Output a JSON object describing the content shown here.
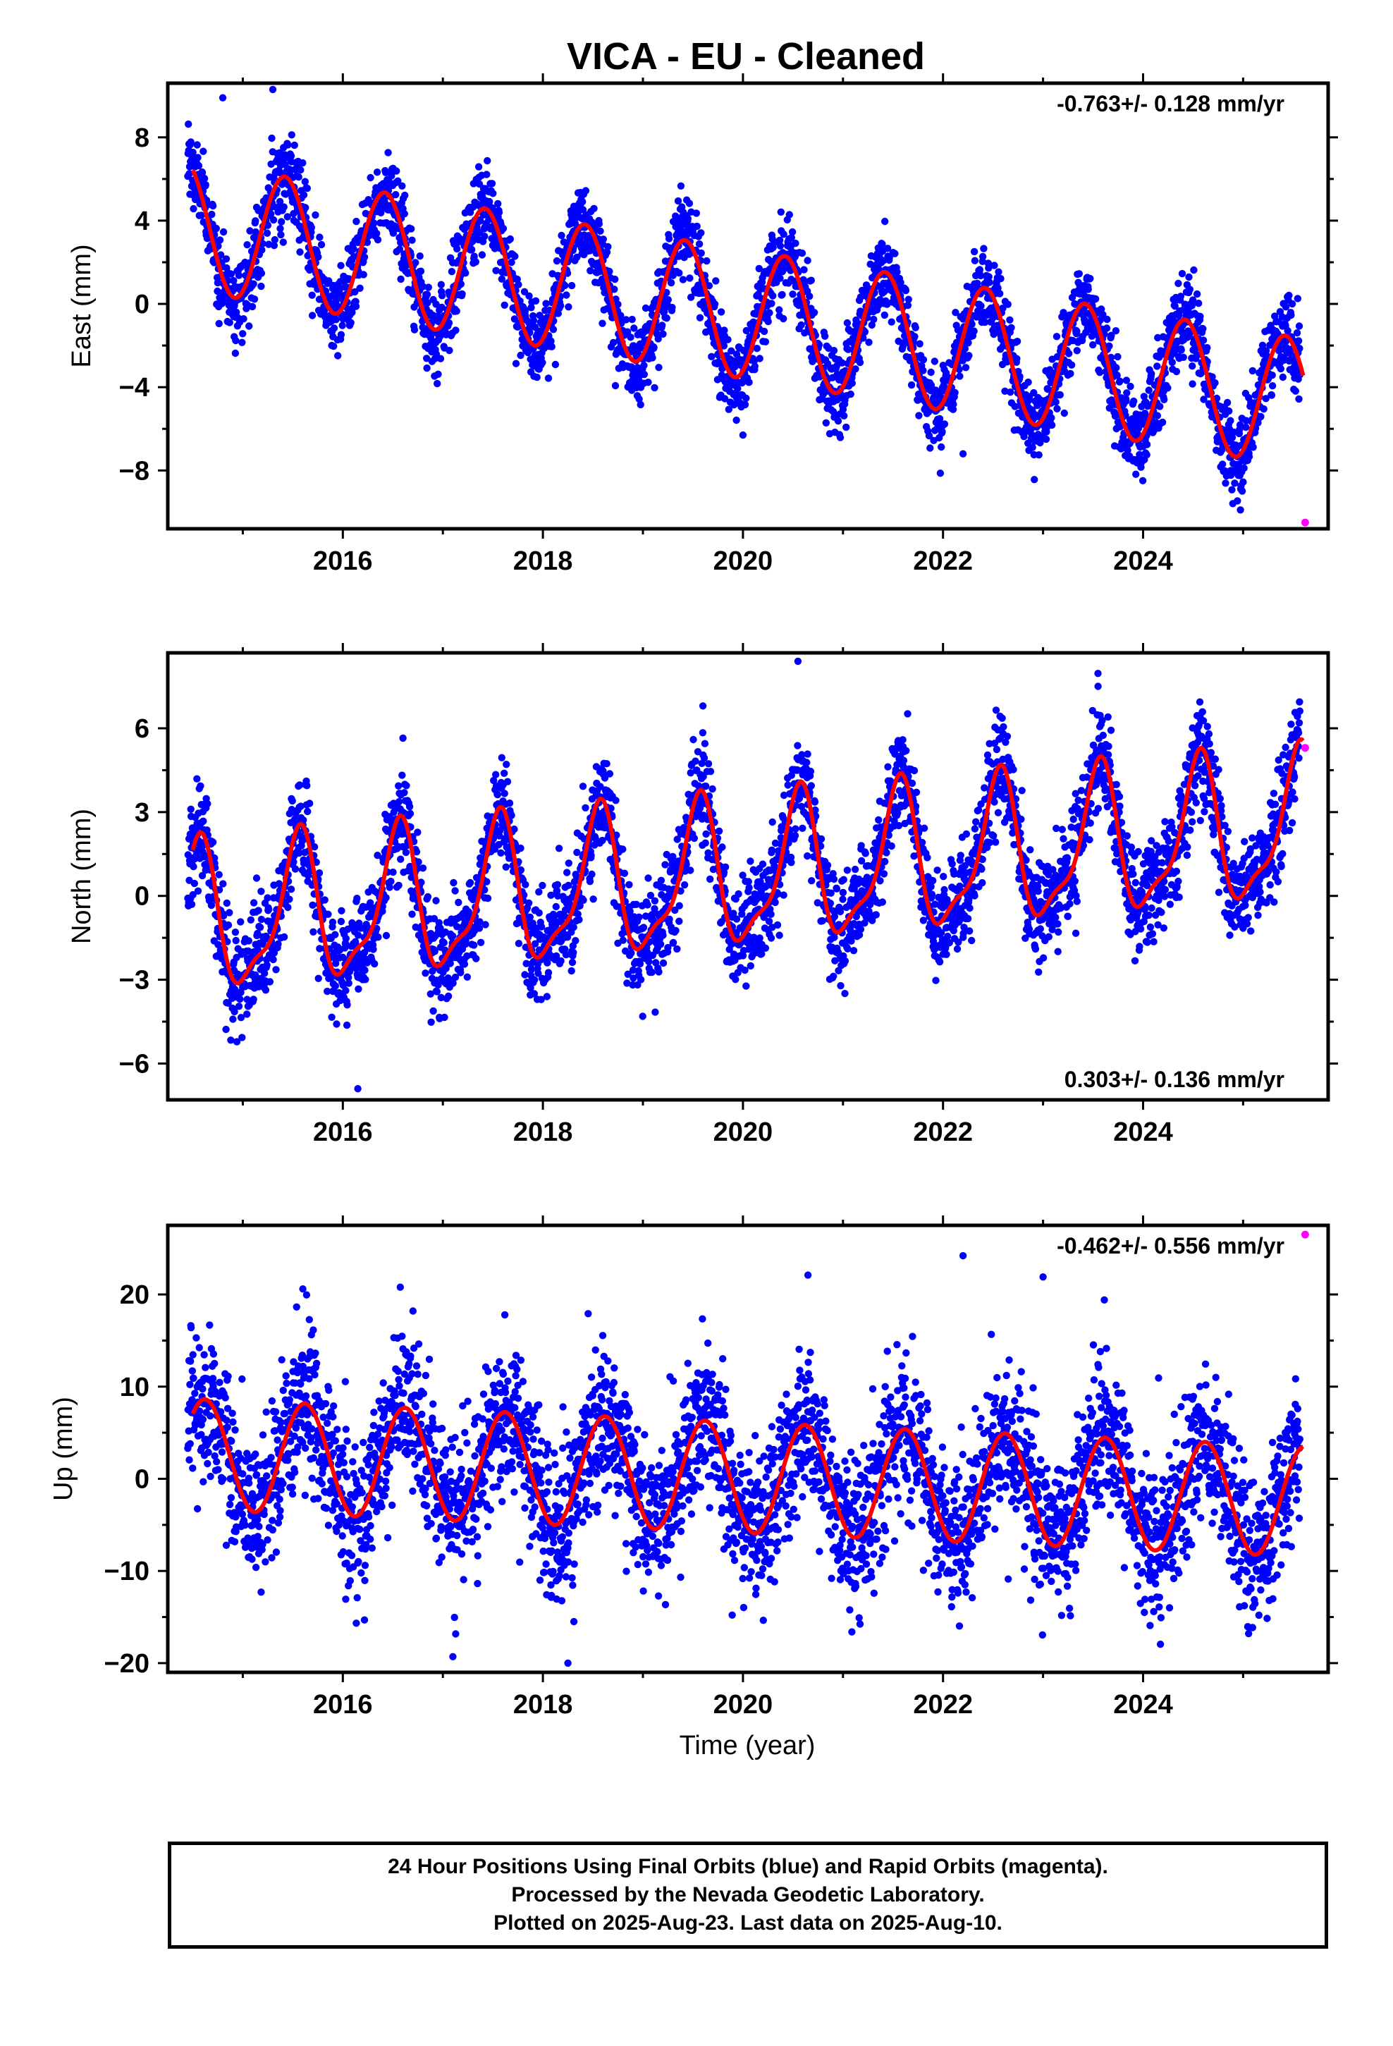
{
  "title": "VICA  - EU - Cleaned",
  "xlabel": "Time (year)",
  "caption": {
    "line1": "24 Hour Positions Using Final Orbits (blue) and Rapid Orbits (magenta).",
    "line2": "Processed by the Nevada Geodetic Laboratory.",
    "line3": "Plotted on 2025-Aug-23. Last data on 2025-Aug-10."
  },
  "colors": {
    "final": "#0000ff",
    "rapid": "#ff00ff",
    "model": "#ff0000",
    "axis": "#000000"
  },
  "chart_data": [
    {
      "type": "scatter",
      "name": "east",
      "ylabel": "East (mm)",
      "rate_label": "-0.763+/- 0.128 mm/yr",
      "rate_position": "top-right",
      "xlim": [
        2014.25,
        2025.85
      ],
      "ylim": [
        -10.8,
        10.6
      ],
      "xticks": [
        2016,
        2018,
        2020,
        2022,
        2024
      ],
      "yticks": [
        -8,
        -4,
        0,
        4,
        8
      ],
      "yticklabels": [
        "−8",
        "−4",
        "0",
        "4",
        "8"
      ],
      "series": [
        {
          "series_type": "final_orbits_scatter",
          "x_range": [
            2014.45,
            2025.57
          ],
          "points_per_year": 330,
          "trend": {
            "intercept_at_2014.45": 3.75,
            "rate_mm_per_yr": -0.763
          },
          "annual": {
            "amplitude": 3.1,
            "peak_year_fraction": 0.42
          },
          "scatter_mm": 1.0
        },
        {
          "series_type": "model_fit",
          "x_range": [
            2014.5,
            2025.6
          ]
        },
        {
          "series_type": "rapid_orbits",
          "points": [
            [
              2025.62,
              -10.5
            ]
          ]
        }
      ],
      "outliers": [
        [
          2014.8,
          9.9
        ],
        [
          2015.3,
          10.3
        ],
        [
          2022.2,
          -7.2
        ],
        [
          2020.0,
          -6.3
        ]
      ]
    },
    {
      "type": "scatter",
      "name": "north",
      "ylabel": "North (mm)",
      "rate_label": "0.303+/- 0.136 mm/yr",
      "rate_position": "bottom-right",
      "xlim": [
        2014.25,
        2025.85
      ],
      "ylim": [
        -7.3,
        8.7
      ],
      "xticks": [
        2016,
        2018,
        2020,
        2022,
        2024
      ],
      "yticks": [
        -6,
        -3,
        0,
        3,
        6
      ],
      "yticklabels": [
        "−6",
        "−3",
        "0",
        "3",
        "6"
      ],
      "series": [
        {
          "series_type": "final_orbits_scatter",
          "x_range": [
            2014.45,
            2025.57
          ],
          "points_per_year": 330,
          "trend": {
            "intercept_at_2014.45": -1.0,
            "rate_mm_per_yr": 0.303
          },
          "annual": {
            "amplitude": 2.5,
            "peak_year_fraction": 0.55
          },
          "semiannual": {
            "amplitude": 0.8
          },
          "scatter_mm": 0.9
        },
        {
          "series_type": "model_fit",
          "x_range": [
            2014.5,
            2025.6
          ]
        },
        {
          "series_type": "rapid_orbits",
          "points": [
            [
              2025.62,
              5.3
            ]
          ]
        }
      ],
      "outliers": [
        [
          2020.55,
          8.4
        ],
        [
          2019.6,
          6.8
        ],
        [
          2016.15,
          -6.9
        ],
        [
          2023.55,
          7.5
        ]
      ]
    },
    {
      "type": "scatter",
      "name": "up",
      "ylabel": "Up (mm)",
      "rate_label": "-0.462+/- 0.556 mm/yr",
      "rate_position": "top-right",
      "xlim": [
        2014.25,
        2025.85
      ],
      "ylim": [
        -21,
        27.5
      ],
      "xticks": [
        2016,
        2018,
        2020,
        2022,
        2024
      ],
      "yticks": [
        -20,
        -10,
        0,
        10,
        20
      ],
      "yticklabels": [
        "−20",
        "−10",
        "0",
        "10",
        "20"
      ],
      "series": [
        {
          "series_type": "final_orbits_scatter",
          "x_range": [
            2014.45,
            2025.57
          ],
          "points_per_year": 330,
          "trend": {
            "intercept_at_2014.45": 2.7,
            "rate_mm_per_yr": -0.462
          },
          "annual": {
            "amplitude": 6.0,
            "peak_year_fraction": 0.62
          },
          "scatter_mm": 4.2
        },
        {
          "series_type": "model_fit",
          "x_range": [
            2014.5,
            2025.6
          ]
        },
        {
          "series_type": "rapid_orbits",
          "points": [
            [
              2025.62,
              26.5
            ]
          ]
        }
      ],
      "outliers": [
        [
          2022.2,
          24.2
        ],
        [
          2023.0,
          21.9
        ],
        [
          2020.65,
          22.1
        ],
        [
          2015.6,
          20.6
        ],
        [
          2018.25,
          -20.0
        ],
        [
          2017.1,
          -19.3
        ]
      ]
    }
  ]
}
